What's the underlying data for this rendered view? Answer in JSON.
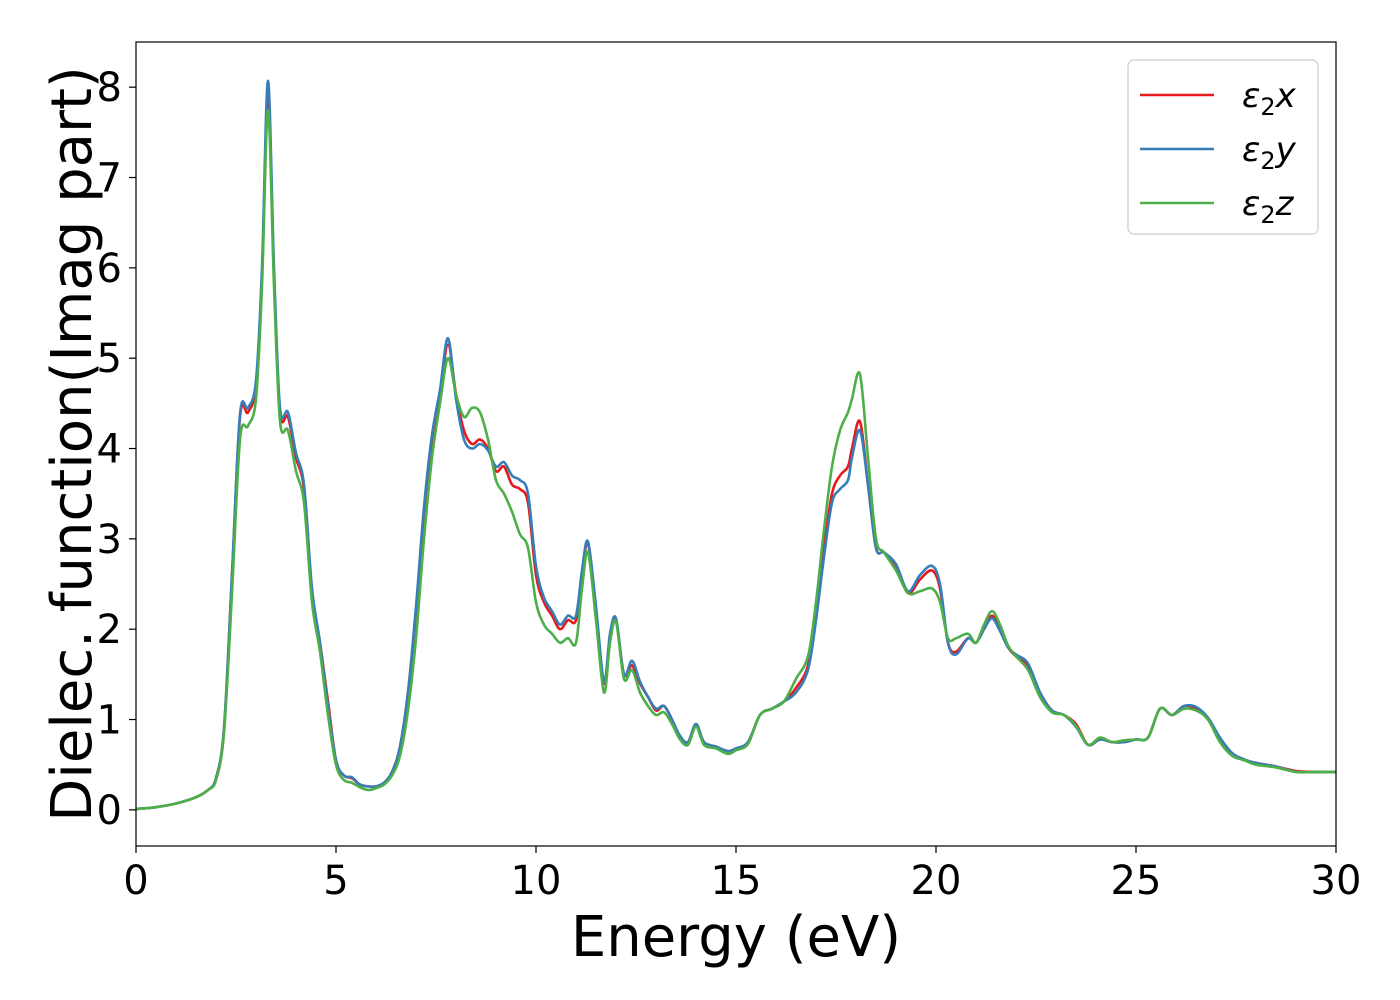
{
  "chart_data": {
    "type": "line",
    "title": "",
    "xlabel": "Energy (eV)",
    "ylabel": "Dielec. function(Imag part)",
    "xlim": [
      0,
      30
    ],
    "ylim": [
      -0.4,
      8.5
    ],
    "xticks": [
      0,
      5,
      10,
      15,
      20,
      25,
      30
    ],
    "yticks": [
      0,
      1,
      2,
      3,
      4,
      5,
      6,
      7,
      8
    ],
    "grid": false,
    "legend_position": "top-right",
    "series": [
      {
        "name": "ε2x",
        "legend_base": "ε",
        "legend_sub": "2",
        "legend_suffix": "x",
        "color": "#e41a1c",
        "x": [
          0,
          0.5,
          1.0,
          1.5,
          1.8,
          2.0,
          2.2,
          2.4,
          2.6,
          2.8,
          3.0,
          3.15,
          3.3,
          3.45,
          3.6,
          3.8,
          4.0,
          4.2,
          4.4,
          4.6,
          4.8,
          5.0,
          5.2,
          5.4,
          5.6,
          5.8,
          6.0,
          6.2,
          6.4,
          6.6,
          6.8,
          7.0,
          7.2,
          7.4,
          7.6,
          7.8,
          8.0,
          8.2,
          8.4,
          8.6,
          8.8,
          9.0,
          9.2,
          9.4,
          9.6,
          9.8,
          10.0,
          10.2,
          10.4,
          10.6,
          10.8,
          11.0,
          11.15,
          11.3,
          11.5,
          11.7,
          11.85,
          12.0,
          12.2,
          12.4,
          12.6,
          12.8,
          13.0,
          13.2,
          13.4,
          13.6,
          13.8,
          14.0,
          14.2,
          14.5,
          14.8,
          15.0,
          15.3,
          15.6,
          15.9,
          16.2,
          16.5,
          16.8,
          17.0,
          17.2,
          17.4,
          17.6,
          17.8,
          17.9,
          18.1,
          18.3,
          18.5,
          18.7,
          19.0,
          19.3,
          19.6,
          19.9,
          20.1,
          20.3,
          20.5,
          20.8,
          21.0,
          21.2,
          21.4,
          21.6,
          21.8,
          22.0,
          22.3,
          22.6,
          22.9,
          23.2,
          23.5,
          23.8,
          24.1,
          24.4,
          24.7,
          25.0,
          25.3,
          25.6,
          25.9,
          26.2,
          26.5,
          26.8,
          27.1,
          27.4,
          27.7,
          28.0,
          28.5,
          29.0,
          29.5,
          30.0
        ],
        "values": [
          0.01,
          0.03,
          0.07,
          0.14,
          0.22,
          0.35,
          0.9,
          2.6,
          4.35,
          4.4,
          4.7,
          5.9,
          7.9,
          5.9,
          4.4,
          4.35,
          3.9,
          3.55,
          2.4,
          1.85,
          1.2,
          0.55,
          0.38,
          0.35,
          0.28,
          0.26,
          0.26,
          0.3,
          0.42,
          0.7,
          1.3,
          2.2,
          3.3,
          4.1,
          4.6,
          5.15,
          4.6,
          4.2,
          4.05,
          4.1,
          4.0,
          3.75,
          3.8,
          3.6,
          3.55,
          3.4,
          2.6,
          2.3,
          2.15,
          2.0,
          2.1,
          2.1,
          2.6,
          2.95,
          2.2,
          1.4,
          1.9,
          2.1,
          1.5,
          1.6,
          1.4,
          1.25,
          1.1,
          1.15,
          1.0,
          0.8,
          0.75,
          0.95,
          0.75,
          0.7,
          0.65,
          0.68,
          0.75,
          1.05,
          1.12,
          1.2,
          1.35,
          1.6,
          2.2,
          2.9,
          3.5,
          3.7,
          3.8,
          4.0,
          4.3,
          3.6,
          2.9,
          2.85,
          2.7,
          2.4,
          2.55,
          2.65,
          2.45,
          1.85,
          1.75,
          1.9,
          1.85,
          2.0,
          2.15,
          2.0,
          1.8,
          1.7,
          1.6,
          1.3,
          1.1,
          1.05,
          0.95,
          0.72,
          0.78,
          0.75,
          0.75,
          0.78,
          0.8,
          1.12,
          1.05,
          1.15,
          1.12,
          1.0,
          0.78,
          0.62,
          0.55,
          0.52,
          0.48,
          0.43,
          0.42,
          0.42
        ]
      },
      {
        "name": "ε2y",
        "legend_base": "ε",
        "legend_sub": "2",
        "legend_suffix": "y",
        "color": "#377eb8",
        "x": [
          0,
          0.5,
          1.0,
          1.5,
          1.8,
          2.0,
          2.2,
          2.4,
          2.6,
          2.8,
          3.0,
          3.15,
          3.3,
          3.45,
          3.6,
          3.8,
          4.0,
          4.2,
          4.4,
          4.6,
          4.8,
          5.0,
          5.2,
          5.4,
          5.6,
          5.8,
          6.0,
          6.2,
          6.4,
          6.6,
          6.8,
          7.0,
          7.2,
          7.4,
          7.6,
          7.8,
          8.0,
          8.2,
          8.4,
          8.6,
          8.8,
          9.0,
          9.2,
          9.4,
          9.6,
          9.8,
          10.0,
          10.2,
          10.4,
          10.6,
          10.8,
          11.0,
          11.15,
          11.3,
          11.5,
          11.7,
          11.85,
          12.0,
          12.2,
          12.4,
          12.6,
          12.8,
          13.0,
          13.2,
          13.4,
          13.6,
          13.8,
          14.0,
          14.2,
          14.5,
          14.8,
          15.0,
          15.3,
          15.6,
          15.9,
          16.2,
          16.5,
          16.8,
          17.0,
          17.2,
          17.4,
          17.6,
          17.8,
          17.9,
          18.1,
          18.3,
          18.5,
          18.7,
          19.0,
          19.3,
          19.6,
          19.9,
          20.1,
          20.3,
          20.5,
          20.8,
          21.0,
          21.2,
          21.4,
          21.6,
          21.8,
          22.0,
          22.3,
          22.6,
          22.9,
          23.2,
          23.5,
          23.8,
          24.1,
          24.4,
          24.7,
          25.0,
          25.3,
          25.6,
          25.9,
          26.2,
          26.5,
          26.8,
          27.1,
          27.4,
          27.7,
          28.0,
          28.5,
          29.0,
          29.5,
          30.0
        ],
        "values": [
          0.01,
          0.03,
          0.07,
          0.14,
          0.22,
          0.35,
          0.9,
          2.6,
          4.38,
          4.45,
          4.75,
          6.0,
          8.07,
          6.0,
          4.45,
          4.4,
          3.95,
          3.6,
          2.45,
          1.85,
          1.15,
          0.55,
          0.38,
          0.36,
          0.28,
          0.26,
          0.26,
          0.3,
          0.42,
          0.7,
          1.3,
          2.25,
          3.35,
          4.15,
          4.65,
          5.22,
          4.55,
          4.1,
          4.0,
          4.05,
          3.98,
          3.8,
          3.85,
          3.7,
          3.65,
          3.5,
          2.7,
          2.35,
          2.2,
          2.05,
          2.15,
          2.15,
          2.65,
          2.97,
          2.25,
          1.42,
          1.95,
          2.12,
          1.5,
          1.65,
          1.42,
          1.25,
          1.12,
          1.15,
          1.0,
          0.82,
          0.75,
          0.95,
          0.75,
          0.7,
          0.65,
          0.68,
          0.75,
          1.05,
          1.12,
          1.2,
          1.3,
          1.55,
          2.1,
          2.8,
          3.4,
          3.55,
          3.65,
          3.9,
          4.2,
          3.6,
          2.9,
          2.85,
          2.72,
          2.42,
          2.6,
          2.7,
          2.5,
          1.85,
          1.72,
          1.9,
          1.85,
          2.0,
          2.12,
          1.98,
          1.8,
          1.72,
          1.62,
          1.3,
          1.1,
          1.05,
          0.92,
          0.72,
          0.78,
          0.75,
          0.75,
          0.78,
          0.8,
          1.12,
          1.05,
          1.15,
          1.14,
          1.02,
          0.8,
          0.63,
          0.56,
          0.52,
          0.48,
          0.42,
          0.42,
          0.42
        ]
      },
      {
        "name": "ε2z",
        "legend_base": "ε",
        "legend_sub": "2",
        "legend_suffix": "z",
        "color": "#4daf4a",
        "x": [
          0,
          0.5,
          1.0,
          1.5,
          1.8,
          2.0,
          2.2,
          2.4,
          2.6,
          2.8,
          3.0,
          3.15,
          3.3,
          3.45,
          3.6,
          3.8,
          4.0,
          4.2,
          4.4,
          4.6,
          4.8,
          5.0,
          5.2,
          5.4,
          5.6,
          5.8,
          6.0,
          6.2,
          6.4,
          6.6,
          6.8,
          7.0,
          7.2,
          7.4,
          7.6,
          7.8,
          8.0,
          8.2,
          8.4,
          8.6,
          8.8,
          9.0,
          9.2,
          9.4,
          9.6,
          9.8,
          10.0,
          10.2,
          10.4,
          10.6,
          10.8,
          11.0,
          11.15,
          11.3,
          11.5,
          11.7,
          11.85,
          12.0,
          12.2,
          12.4,
          12.6,
          12.8,
          13.0,
          13.2,
          13.4,
          13.6,
          13.8,
          14.0,
          14.2,
          14.5,
          14.8,
          15.0,
          15.3,
          15.6,
          15.9,
          16.2,
          16.5,
          16.8,
          17.0,
          17.2,
          17.4,
          17.6,
          17.8,
          17.9,
          18.1,
          18.3,
          18.5,
          18.7,
          19.0,
          19.3,
          19.6,
          19.9,
          20.1,
          20.3,
          20.5,
          20.8,
          21.0,
          21.2,
          21.4,
          21.6,
          21.8,
          22.0,
          22.3,
          22.6,
          22.9,
          23.2,
          23.5,
          23.8,
          24.1,
          24.4,
          24.7,
          25.0,
          25.3,
          25.6,
          25.9,
          26.2,
          26.5,
          26.8,
          27.1,
          27.4,
          27.7,
          28.0,
          28.5,
          29.0,
          29.5,
          30.0
        ],
        "values": [
          0.01,
          0.03,
          0.07,
          0.14,
          0.22,
          0.33,
          0.85,
          2.4,
          4.1,
          4.25,
          4.55,
          5.8,
          7.75,
          5.8,
          4.3,
          4.2,
          3.75,
          3.4,
          2.3,
          1.75,
          1.05,
          0.5,
          0.33,
          0.3,
          0.25,
          0.22,
          0.24,
          0.28,
          0.38,
          0.6,
          1.1,
          1.9,
          3.0,
          3.9,
          4.5,
          5.0,
          4.6,
          4.35,
          4.45,
          4.4,
          4.1,
          3.65,
          3.5,
          3.3,
          3.05,
          2.9,
          2.3,
          2.05,
          1.95,
          1.85,
          1.9,
          1.85,
          2.45,
          2.85,
          2.1,
          1.3,
          1.85,
          2.08,
          1.45,
          1.55,
          1.3,
          1.15,
          1.05,
          1.08,
          0.95,
          0.78,
          0.72,
          0.92,
          0.72,
          0.68,
          0.62,
          0.66,
          0.73,
          1.05,
          1.12,
          1.2,
          1.45,
          1.7,
          2.3,
          3.1,
          3.8,
          4.2,
          4.4,
          4.55,
          4.82,
          3.9,
          3.0,
          2.85,
          2.65,
          2.4,
          2.42,
          2.45,
          2.3,
          1.9,
          1.9,
          1.95,
          1.85,
          2.05,
          2.2,
          2.05,
          1.82,
          1.7,
          1.55,
          1.25,
          1.08,
          1.05,
          0.93,
          0.72,
          0.8,
          0.75,
          0.77,
          0.78,
          0.8,
          1.12,
          1.05,
          1.12,
          1.1,
          1.0,
          0.75,
          0.6,
          0.55,
          0.5,
          0.47,
          0.42,
          0.42,
          0.42
        ]
      }
    ]
  }
}
